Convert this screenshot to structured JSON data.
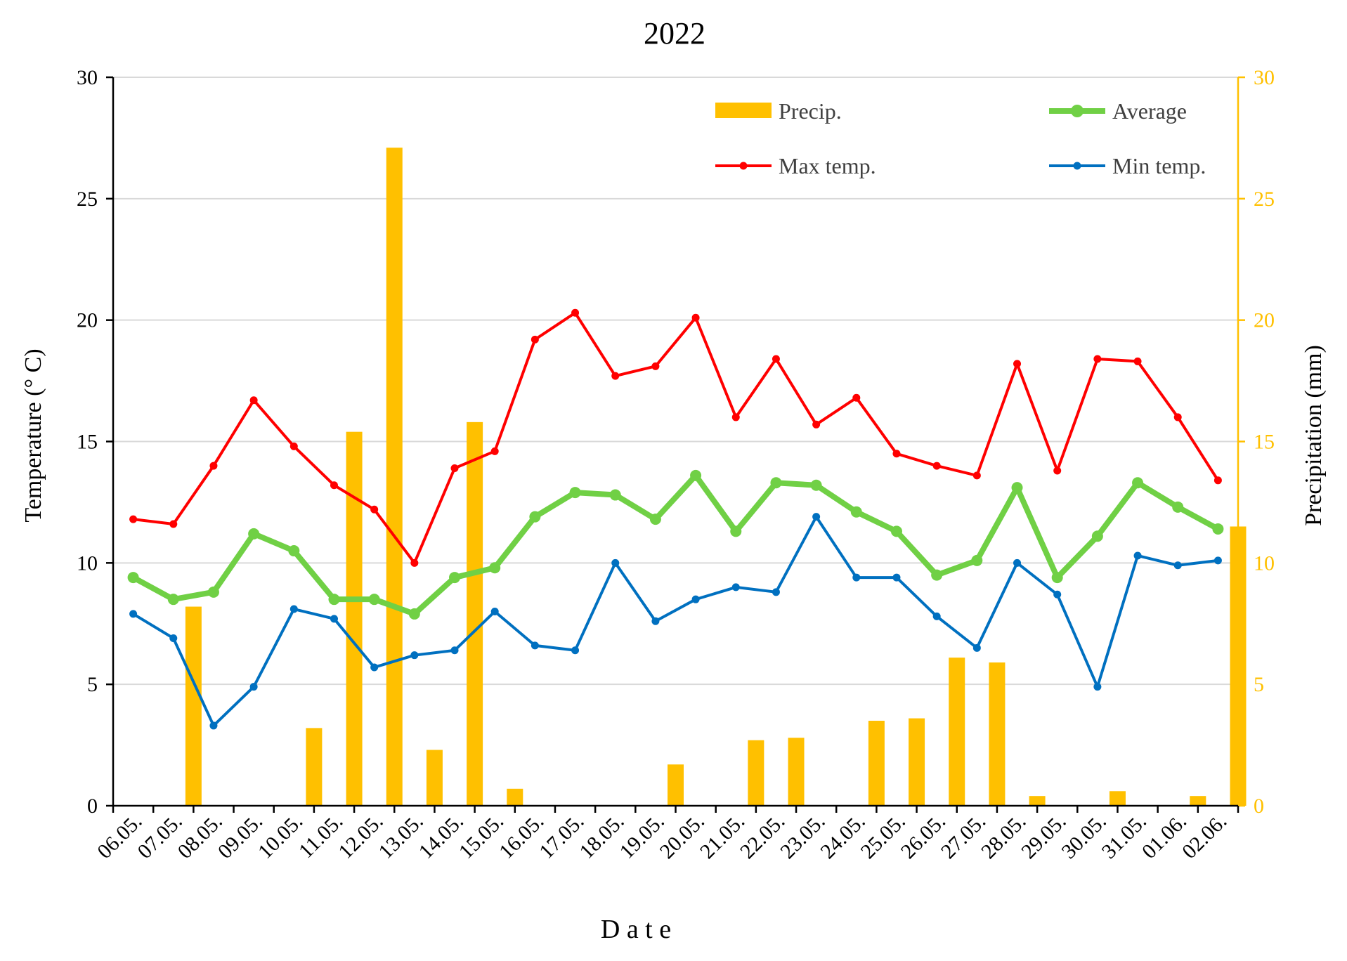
{
  "chart_data": {
    "type": "bar+line",
    "title": "2022",
    "xlabel": "D a t e",
    "ylabel_left": "Temperature (° C)",
    "ylabel_right": "Precipitation (mm)",
    "ylim_left": [
      0,
      30
    ],
    "ylim_right": [
      0,
      30
    ],
    "yticks_left": [
      "0",
      "5",
      "10",
      "15",
      "20",
      "25",
      "30"
    ],
    "yticks_right": [
      "0",
      "5",
      "10",
      "15",
      "20",
      "25",
      "30"
    ],
    "grid": "horizontal",
    "legend_placement": "top-right",
    "categories": [
      "06.05.",
      "07.05.",
      "08.05.",
      "09.05.",
      "10.05.",
      "11.05.",
      "12.05.",
      "13.05.",
      "14.05.",
      "15.05.",
      "16.05.",
      "17.05.",
      "18.05.",
      "19.05.",
      "20.05.",
      "21.05.",
      "22.05.",
      "23.05.",
      "24.05.",
      "25.05.",
      "26.05.",
      "27.05.",
      "28.05.",
      "29.05.",
      "30.05.",
      "31.05.",
      "01.06.",
      "02.06."
    ],
    "series": [
      {
        "name": "Precip.",
        "type": "bar",
        "axis": "right",
        "color": "#FFC000",
        "values": [
          0,
          8.2,
          0,
          0,
          3.2,
          15.4,
          27.1,
          2.3,
          15.8,
          0.7,
          0,
          0,
          0,
          1.7,
          0,
          2.7,
          2.8,
          0,
          3.5,
          3.6,
          6.1,
          5.9,
          0.4,
          0,
          0.6,
          0,
          0.4,
          11.5
        ]
      },
      {
        "name": "Average",
        "type": "line",
        "axis": "left",
        "color": "#70D045",
        "values": [
          9.4,
          8.5,
          8.8,
          11.2,
          10.5,
          8.5,
          8.5,
          7.9,
          9.4,
          9.8,
          11.9,
          12.9,
          12.8,
          11.8,
          13.6,
          11.3,
          13.3,
          13.2,
          12.1,
          11.3,
          9.5,
          10.1,
          13.1,
          9.4,
          11.1,
          13.3,
          12.3,
          11.4
        ]
      },
      {
        "name": "Max temp.",
        "type": "line",
        "axis": "left",
        "color": "#FF0000",
        "values": [
          11.8,
          11.6,
          14.0,
          16.7,
          14.8,
          13.2,
          12.2,
          10.0,
          13.9,
          14.6,
          19.2,
          20.3,
          17.7,
          18.1,
          20.1,
          16.0,
          18.4,
          15.7,
          16.8,
          14.5,
          14.0,
          13.6,
          18.2,
          13.8,
          18.4,
          18.3,
          16.0,
          13.4
        ]
      },
      {
        "name": "Min temp.",
        "type": "line",
        "axis": "left",
        "color": "#0070C0",
        "values": [
          7.9,
          6.9,
          3.3,
          4.9,
          8.1,
          7.7,
          5.7,
          6.2,
          6.4,
          8.0,
          6.6,
          6.4,
          10.0,
          7.6,
          8.5,
          9.0,
          8.8,
          11.9,
          9.4,
          9.4,
          7.8,
          6.5,
          10.0,
          8.7,
          4.9,
          10.3,
          9.9,
          10.1
        ]
      }
    ],
    "colors": {
      "axis": "#000000",
      "right_axis": "#FFC000",
      "grid": "#D9D9D9"
    }
  }
}
